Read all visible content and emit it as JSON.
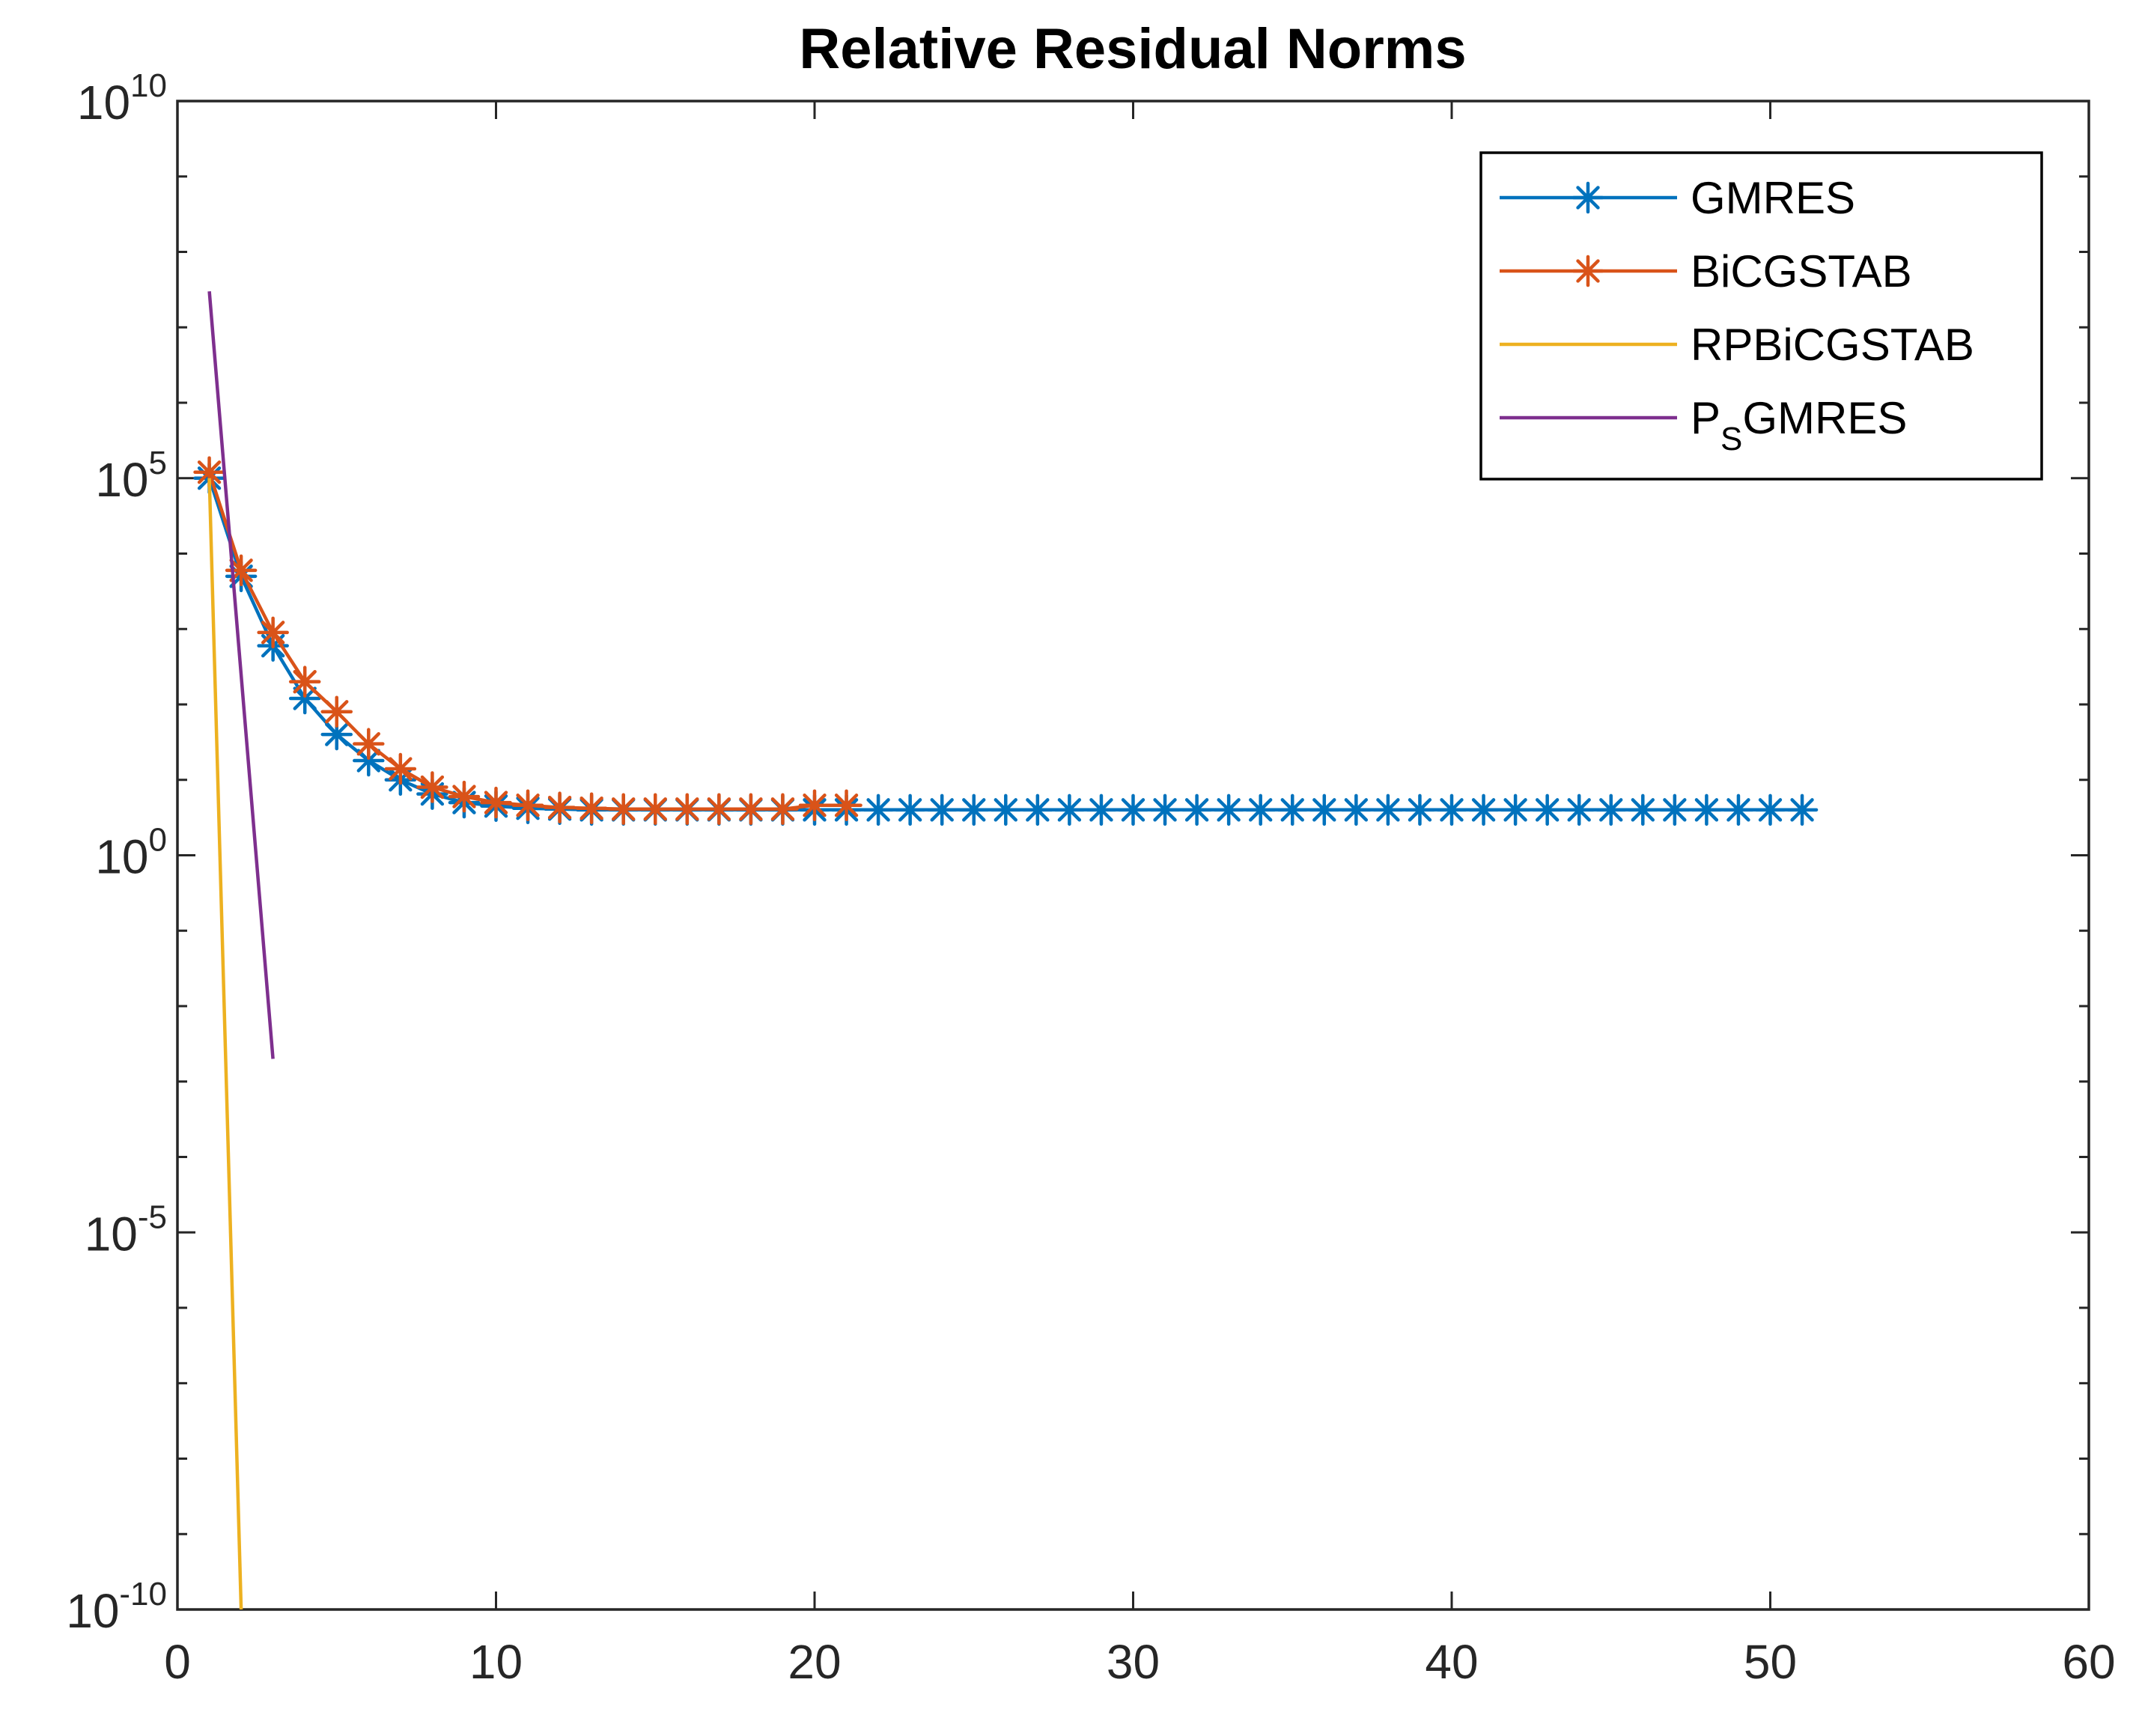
{
  "chart_data": {
    "type": "line",
    "title": "Relative Residual Norms",
    "xlabel": "",
    "ylabel": "",
    "xlim": [
      0,
      60
    ],
    "ylim": [
      1e-10,
      10000000000.0
    ],
    "yscale": "log",
    "xticks": [
      0,
      10,
      20,
      30,
      40,
      50,
      60
    ],
    "xtick_labels": [
      "0",
      "10",
      "20",
      "30",
      "40",
      "50",
      "60"
    ],
    "yticks": [
      {
        "value": 10000000000.0,
        "base": "10",
        "exponent": "10"
      },
      {
        "value": 100000.0,
        "base": "10",
        "exponent": "5"
      },
      {
        "value": 1,
        "base": "10",
        "exponent": "0"
      },
      {
        "value": 1e-05,
        "base": "10",
        "exponent": "-5"
      },
      {
        "value": 1e-10,
        "base": "10",
        "exponent": "-10"
      }
    ],
    "grid": false,
    "legend_position": "top-right",
    "series": [
      {
        "name": "GMRES",
        "legend_label": "GMRES",
        "color": "#0072BD",
        "marker": "asterisk",
        "x": [
          1,
          2,
          3,
          4,
          5,
          6,
          7,
          8,
          9,
          10,
          11,
          12,
          13,
          14,
          15,
          16,
          17,
          18,
          19,
          20,
          21,
          22,
          23,
          24,
          25,
          26,
          27,
          28,
          29,
          30,
          31,
          32,
          33,
          34,
          35,
          36,
          37,
          38,
          39,
          40,
          41,
          42,
          43,
          44,
          45,
          46,
          47,
          48,
          49,
          50,
          51
        ],
        "y": [
          100000.0,
          5000,
          600,
          120,
          40,
          18,
          10,
          6.5,
          5,
          4.5,
          4.2,
          4.1,
          4,
          4,
          4,
          4,
          4,
          4,
          4,
          4,
          4,
          4,
          4,
          4,
          4,
          4,
          4,
          4,
          4,
          4,
          4,
          4,
          4,
          4,
          4,
          4,
          4,
          4,
          4,
          4,
          4,
          4,
          4,
          4,
          4,
          4,
          4,
          4,
          4,
          4,
          4
        ]
      },
      {
        "name": "BiCGSTAB",
        "legend_label": "BiCGSTAB",
        "color": "#D95319",
        "marker": "asterisk",
        "x": [
          1,
          2,
          3,
          4,
          5,
          6,
          7,
          8,
          9,
          10,
          11,
          12,
          13,
          14,
          15,
          16,
          17,
          18,
          19,
          20,
          21
        ],
        "y": [
          120000.0,
          6000,
          900,
          200,
          80,
          30,
          14,
          8,
          6,
          5,
          4.6,
          4.3,
          4.2,
          4.1,
          4.1,
          4.1,
          4.1,
          4.1,
          4.1,
          4.6,
          4.6
        ]
      },
      {
        "name": "RPBiCGSTAB",
        "legend_label": "RPBiCGSTAB",
        "color": "#EDB120",
        "marker": "none",
        "x": [
          1,
          2
        ],
        "y": [
          100000.0,
          1e-10
        ]
      },
      {
        "name": "PSGMRES",
        "legend_label": {
          "main": "P",
          "sub": "S",
          "rest": "GMRES"
        },
        "color": "#7E2F8E",
        "marker": "none",
        "x": [
          1,
          3
        ],
        "y": [
          30000000.0,
          0.002
        ]
      }
    ]
  }
}
